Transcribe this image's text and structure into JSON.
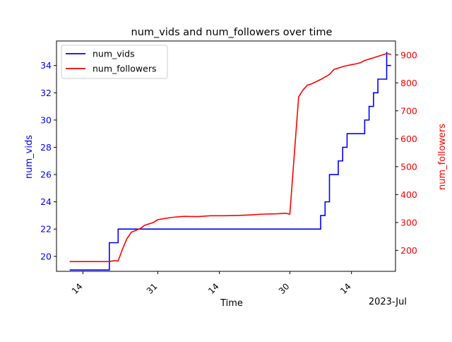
{
  "chart_data": {
    "type": "line",
    "title": "num_vids and num_followers over time",
    "xlabel": "Time",
    "x_offset_label": "2023-Jul",
    "x_ticks": [
      {
        "date": "2023-05-14",
        "label": "14"
      },
      {
        "date": "2023-05-31",
        "label": "31"
      },
      {
        "date": "2023-06-14",
        "label": "14"
      },
      {
        "date": "2023-06-30",
        "label": "30"
      },
      {
        "date": "2023-07-14",
        "label": "14"
      }
    ],
    "xlim": [
      "2023-05-08",
      "2023-07-24"
    ],
    "left_axis": {
      "label": "num_vids",
      "color": "#0000ff",
      "ylim": [
        18.9,
        35.8
      ],
      "ticks": [
        20,
        22,
        24,
        26,
        28,
        30,
        32,
        34
      ]
    },
    "right_axis": {
      "label": "num_followers",
      "color": "#ff0000",
      "ylim": [
        125,
        950
      ],
      "ticks": [
        200,
        300,
        400,
        500,
        600,
        700,
        800,
        900
      ]
    },
    "legend": {
      "position": "top-left",
      "entries": [
        {
          "label": "num_vids",
          "color": "#0000ff"
        },
        {
          "label": "num_followers",
          "color": "#ff0000"
        }
      ]
    },
    "series": [
      {
        "name": "num_vids",
        "axis": "left",
        "color": "#0000ff",
        "step": true,
        "points": [
          [
            "2023-05-11",
            19
          ],
          [
            "2023-05-20",
            19
          ],
          [
            "2023-05-20",
            21
          ],
          [
            "2023-05-22",
            21
          ],
          [
            "2023-05-22",
            22
          ],
          [
            "2023-07-07",
            22
          ],
          [
            "2023-07-07",
            23
          ],
          [
            "2023-07-08",
            23
          ],
          [
            "2023-07-08",
            24
          ],
          [
            "2023-07-09",
            24
          ],
          [
            "2023-07-09",
            26
          ],
          [
            "2023-07-11",
            26
          ],
          [
            "2023-07-11",
            27
          ],
          [
            "2023-07-12",
            27
          ],
          [
            "2023-07-12",
            28
          ],
          [
            "2023-07-13",
            28
          ],
          [
            "2023-07-13",
            29
          ],
          [
            "2023-07-17",
            29
          ],
          [
            "2023-07-17",
            30
          ],
          [
            "2023-07-18",
            30
          ],
          [
            "2023-07-18",
            31
          ],
          [
            "2023-07-19",
            31
          ],
          [
            "2023-07-19",
            32
          ],
          [
            "2023-07-20",
            32
          ],
          [
            "2023-07-20",
            33
          ],
          [
            "2023-07-22",
            33
          ],
          [
            "2023-07-22",
            35
          ],
          [
            "2023-07-22",
            34
          ],
          [
            "2023-07-23",
            34
          ]
        ]
      },
      {
        "name": "num_followers",
        "axis": "right",
        "color": "#ff0000",
        "step": false,
        "points": [
          [
            "2023-05-11",
            160
          ],
          [
            "2023-05-20",
            160
          ],
          [
            "2023-05-21",
            163
          ],
          [
            "2023-05-22",
            162
          ],
          [
            "2023-05-23",
            205
          ],
          [
            "2023-05-24",
            242
          ],
          [
            "2023-05-25",
            265
          ],
          [
            "2023-05-27",
            278
          ],
          [
            "2023-05-28",
            290
          ],
          [
            "2023-05-30",
            300
          ],
          [
            "2023-05-31",
            310
          ],
          [
            "2023-06-03",
            318
          ],
          [
            "2023-06-06",
            322
          ],
          [
            "2023-06-09",
            321
          ],
          [
            "2023-06-12",
            324
          ],
          [
            "2023-06-15",
            324
          ],
          [
            "2023-06-18",
            325
          ],
          [
            "2023-06-21",
            327
          ],
          [
            "2023-06-24",
            330
          ],
          [
            "2023-06-27",
            331
          ],
          [
            "2023-06-29",
            333
          ],
          [
            "2023-06-30",
            330
          ],
          [
            "2023-07-02",
            750
          ],
          [
            "2023-07-03",
            775
          ],
          [
            "2023-07-04",
            792
          ],
          [
            "2023-07-05",
            797
          ],
          [
            "2023-07-07",
            812
          ],
          [
            "2023-07-09",
            830
          ],
          [
            "2023-07-10",
            848
          ],
          [
            "2023-07-12",
            858
          ],
          [
            "2023-07-13",
            862
          ],
          [
            "2023-07-14",
            865
          ],
          [
            "2023-07-15",
            868
          ],
          [
            "2023-07-16",
            872
          ],
          [
            "2023-07-17",
            880
          ],
          [
            "2023-07-18",
            885
          ],
          [
            "2023-07-19",
            890
          ],
          [
            "2023-07-20",
            895
          ],
          [
            "2023-07-21",
            900
          ],
          [
            "2023-07-22",
            905
          ],
          [
            "2023-07-23",
            902
          ]
        ]
      }
    ]
  }
}
